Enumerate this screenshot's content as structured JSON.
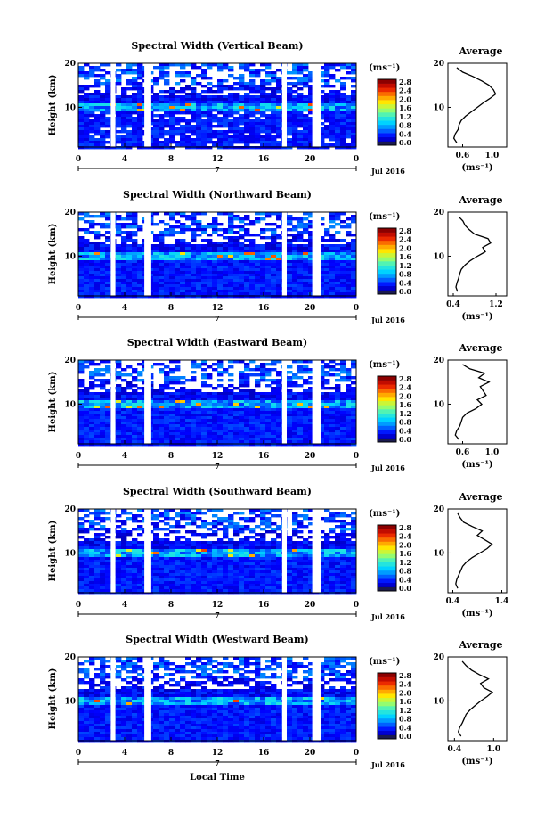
{
  "chart_data": [
    {
      "type": "heatmap",
      "title": "Spectral Width (Vertical Beam)",
      "ylabel": "Height (km)",
      "xlabel": "",
      "date_label": "Jul 2016",
      "day_label": "7",
      "colorbar_unit": "(ms⁻¹)",
      "colorbar_ticks": [
        "2.8",
        "2.4",
        "2.0",
        "1.6",
        "1.2",
        "0.8",
        "0.4",
        "0.0"
      ],
      "x_ticks": [
        "0",
        "4",
        "8",
        "12",
        "16",
        "20",
        "0"
      ],
      "y_ticks": [
        "20",
        "10"
      ],
      "xlim": [
        0,
        24
      ],
      "ylim": [
        1,
        20
      ],
      "data_gaps": [
        [
          2.8,
          3.2
        ],
        [
          5.7,
          6.3
        ],
        [
          17.6,
          18.0
        ],
        [
          20.2,
          21.0
        ]
      ],
      "profile": {
        "title": "Average",
        "xlabel": "(ms⁻¹)",
        "x_ticks": [
          "0.6",
          "1.0"
        ],
        "xlim": [
          0.4,
          1.2
        ],
        "heights": [
          2,
          3,
          4,
          5,
          6,
          7,
          8,
          9,
          10,
          11,
          12,
          13,
          14,
          15,
          16,
          17,
          18,
          19
        ],
        "values": [
          0.52,
          0.48,
          0.5,
          0.54,
          0.55,
          0.58,
          0.64,
          0.72,
          0.8,
          0.88,
          0.97,
          1.05,
          1.02,
          0.96,
          0.86,
          0.74,
          0.6,
          0.52
        ]
      }
    },
    {
      "type": "heatmap",
      "title": "Spectral Width (Northward Beam)",
      "ylabel": "Height (km)",
      "xlabel": "",
      "date_label": "Jul 2016",
      "day_label": "7",
      "colorbar_unit": "(ms⁻¹)",
      "colorbar_ticks": [
        "2.8",
        "2.4",
        "2.0",
        "1.6",
        "1.2",
        "0.8",
        "0.4",
        "0.0"
      ],
      "x_ticks": [
        "0",
        "4",
        "8",
        "12",
        "16",
        "20",
        "0"
      ],
      "y_ticks": [
        "20",
        "10"
      ],
      "xlim": [
        0,
        24
      ],
      "ylim": [
        1,
        20
      ],
      "data_gaps": [
        [
          2.8,
          3.2
        ],
        [
          5.7,
          6.3
        ],
        [
          17.6,
          18.0
        ],
        [
          20.2,
          21.0
        ]
      ],
      "profile": {
        "title": "Average",
        "xlabel": "(ms⁻¹)",
        "x_ticks": [
          "0.4",
          "1.2"
        ],
        "xlim": [
          0.3,
          1.4
        ],
        "heights": [
          2,
          3,
          4,
          5,
          6,
          7,
          8,
          9,
          10,
          11,
          12,
          13,
          14,
          15,
          16,
          17,
          18,
          19
        ],
        "values": [
          0.48,
          0.45,
          0.47,
          0.5,
          0.52,
          0.55,
          0.62,
          0.72,
          0.85,
          1.0,
          0.95,
          1.1,
          1.05,
          0.8,
          0.7,
          0.62,
          0.58,
          0.5
        ]
      }
    },
    {
      "type": "heatmap",
      "title": "Spectral Width (Eastward Beam)",
      "ylabel": "Height (km)",
      "xlabel": "",
      "date_label": "Jul 2016",
      "day_label": "7",
      "colorbar_unit": "(ms⁻¹)",
      "colorbar_ticks": [
        "2.8",
        "2.4",
        "2.0",
        "1.6",
        "1.2",
        "0.8",
        "0.4",
        "0.0"
      ],
      "x_ticks": [
        "0",
        "4",
        "8",
        "12",
        "16",
        "20",
        "0"
      ],
      "y_ticks": [
        "20",
        "10"
      ],
      "xlim": [
        0,
        24
      ],
      "ylim": [
        1,
        20
      ],
      "data_gaps": [
        [
          2.8,
          3.2
        ],
        [
          5.7,
          6.3
        ],
        [
          17.6,
          18.0
        ],
        [
          20.2,
          21.0
        ]
      ],
      "profile": {
        "title": "Average",
        "xlabel": "(ms⁻¹)",
        "x_ticks": [
          "0.6",
          "1.0"
        ],
        "xlim": [
          0.4,
          1.2
        ],
        "heights": [
          2,
          3,
          4,
          5,
          6,
          7,
          8,
          9,
          10,
          11,
          12,
          13,
          14,
          15,
          16,
          17,
          18,
          19
        ],
        "values": [
          0.55,
          0.5,
          0.52,
          0.56,
          0.58,
          0.6,
          0.66,
          0.78,
          0.86,
          0.8,
          0.92,
          0.88,
          0.84,
          0.96,
          0.82,
          0.9,
          0.7,
          0.6
        ]
      }
    },
    {
      "type": "heatmap",
      "title": "Spectral Width (Southward Beam)",
      "ylabel": "Height (km)",
      "xlabel": "",
      "date_label": "Jul 2016",
      "day_label": "7",
      "colorbar_unit": "(ms⁻¹)",
      "colorbar_ticks": [
        "2.8",
        "2.4",
        "2.0",
        "1.6",
        "1.2",
        "0.8",
        "0.4",
        "0.0"
      ],
      "x_ticks": [
        "0",
        "4",
        "8",
        "12",
        "16",
        "20",
        "0"
      ],
      "y_ticks": [
        "20",
        "10"
      ],
      "xlim": [
        0,
        24
      ],
      "ylim": [
        1,
        20
      ],
      "data_gaps": [
        [
          2.8,
          3.2
        ],
        [
          5.7,
          6.3
        ],
        [
          17.6,
          18.0
        ],
        [
          20.2,
          21.0
        ]
      ],
      "profile": {
        "title": "Average",
        "xlabel": "(ms⁻¹)",
        "x_ticks": [
          "0.4",
          "1.4"
        ],
        "xlim": [
          0.3,
          1.5
        ],
        "heights": [
          2,
          3,
          4,
          5,
          6,
          7,
          8,
          9,
          10,
          11,
          12,
          13,
          14,
          15,
          16,
          17,
          18,
          19
        ],
        "values": [
          0.5,
          0.46,
          0.48,
          0.52,
          0.56,
          0.6,
          0.68,
          0.8,
          0.95,
          1.1,
          1.2,
          1.05,
          0.9,
          1.0,
          0.8,
          0.62,
          0.55,
          0.5
        ]
      }
    },
    {
      "type": "heatmap",
      "title": "Spectral Width (Westward Beam)",
      "ylabel": "Height (km)",
      "xlabel": "Local Time",
      "date_label": "Jul 2016",
      "day_label": "7",
      "colorbar_unit": "(ms⁻¹)",
      "colorbar_ticks": [
        "2.8",
        "2.4",
        "2.0",
        "1.6",
        "1.2",
        "0.8",
        "0.4",
        "0.0"
      ],
      "x_ticks": [
        "0",
        "4",
        "8",
        "12",
        "16",
        "20",
        "0"
      ],
      "y_ticks": [
        "20",
        "10"
      ],
      "xlim": [
        0,
        24
      ],
      "ylim": [
        1,
        20
      ],
      "data_gaps": [
        [
          2.8,
          3.2
        ],
        [
          5.7,
          6.3
        ],
        [
          17.6,
          18.0
        ],
        [
          20.2,
          21.0
        ]
      ],
      "profile": {
        "title": "Average",
        "xlabel": "(ms⁻¹)",
        "x_ticks": [
          "0.4",
          "1.0"
        ],
        "xlim": [
          0.3,
          1.2
        ],
        "heights": [
          2,
          3,
          4,
          5,
          6,
          7,
          8,
          9,
          10,
          11,
          12,
          13,
          14,
          15,
          16,
          17,
          18,
          19
        ],
        "values": [
          0.5,
          0.46,
          0.48,
          0.52,
          0.55,
          0.58,
          0.64,
          0.72,
          0.8,
          0.9,
          0.98,
          0.85,
          0.8,
          0.92,
          0.78,
          0.66,
          0.58,
          0.52
        ]
      }
    }
  ]
}
